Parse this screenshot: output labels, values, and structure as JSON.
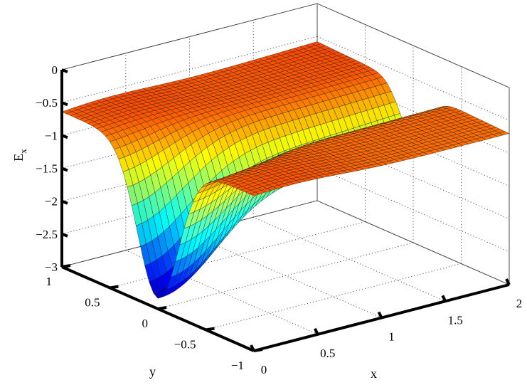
{
  "chart_data": {
    "type": "surface",
    "title": "",
    "xlabel": "x",
    "ylabel": "y",
    "zlabel": "E",
    "zlabel_subscript": "x",
    "xlim": [
      0,
      2
    ],
    "ylim": [
      -1,
      1
    ],
    "zlim": [
      -3,
      0
    ],
    "x_ticks": [
      0,
      0.5,
      1,
      1.5,
      2
    ],
    "y_ticks": [
      -1,
      -0.5,
      0,
      0.5,
      1
    ],
    "z_ticks": [
      -3,
      -2.5,
      -2,
      -1.5,
      -1,
      -0.5,
      0
    ],
    "x_tick_labels": [
      "0",
      "0.5",
      "1",
      "1.5",
      "2"
    ],
    "y_tick_labels": [
      "−1",
      "−0.5",
      "0",
      "0.5",
      "1"
    ],
    "z_tick_labels": [
      "−3",
      "−2.5",
      "−2",
      "−1.5",
      "−1",
      "−0.5",
      "0"
    ],
    "grid": true,
    "colormap": "jet",
    "surface_features": {
      "minimum": {
        "x": 0,
        "y": 0,
        "z": -2.9
      },
      "corner_values": [
        {
          "x": 0,
          "y": 1,
          "z": -0.7
        },
        {
          "x": 0,
          "y": -1,
          "z": -0.7
        },
        {
          "x": 2,
          "y": 1,
          "z": -0.45
        },
        {
          "x": 2,
          "y": -1,
          "z": -0.7
        }
      ],
      "ridge_along_x_at_y": 0
    }
  }
}
